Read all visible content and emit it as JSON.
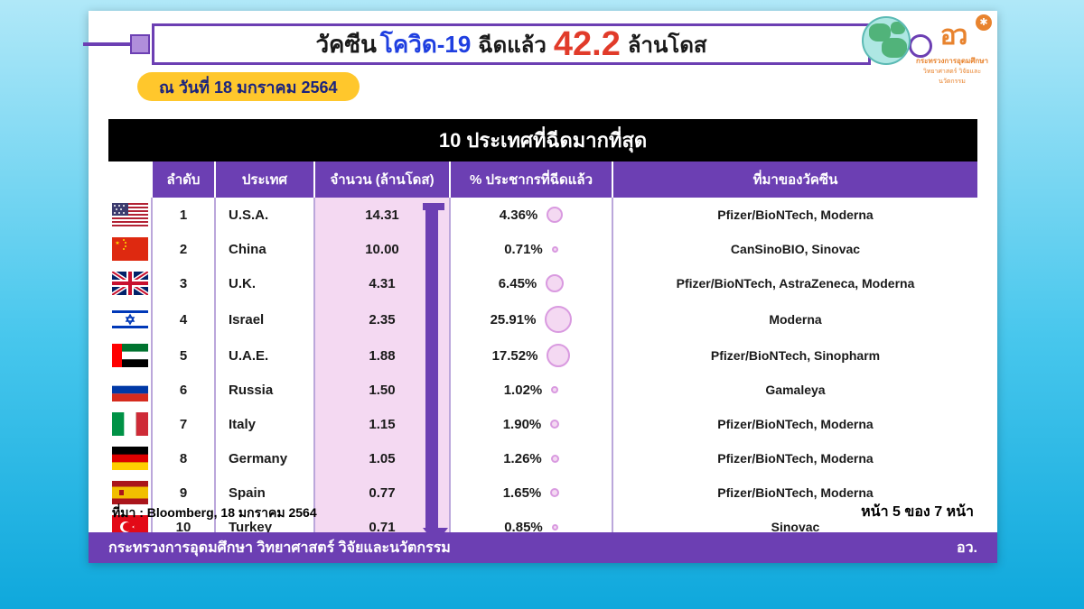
{
  "header": {
    "title_pre": "วัคซีน",
    "title_covid": "โควิด-19",
    "title_mid": "ฉีดแล้ว",
    "title_big": "42.2",
    "title_post": "ล้านโดส",
    "date_label": "ณ วันที่ 18 มกราคม 2564",
    "ministry_line1": "กระทรวงการอุดมศึกษา",
    "ministry_line2": "วิทยาศาสตร์ วิจัยและนวัตกรรม"
  },
  "table": {
    "title": "10 ประเทศที่ฉีดมากที่สุด",
    "columns": {
      "rank": "ลำดับ",
      "country": "ประเทศ",
      "amount": "จำนวน (ล้านโดส)",
      "percent": "% ประชากรที่ฉีดแล้ว",
      "vaccine": "ที่มาของวัคซีน"
    },
    "rows": [
      {
        "flag": "us",
        "rank": "1",
        "country": "U.S.A.",
        "amount": "14.31",
        "percent": "4.36%",
        "bubble": 18,
        "vaccine": "Pfizer/BioNTech, Moderna"
      },
      {
        "flag": "cn",
        "rank": "2",
        "country": "China",
        "amount": "10.00",
        "percent": "0.71%",
        "bubble": 7,
        "vaccine": "CanSinoBIO, Sinovac"
      },
      {
        "flag": "uk",
        "rank": "3",
        "country": "U.K.",
        "amount": "4.31",
        "percent": "6.45%",
        "bubble": 20,
        "vaccine": "Pfizer/BioNTech, AstraZeneca, Moderna"
      },
      {
        "flag": "il",
        "rank": "4",
        "country": "Israel",
        "amount": "2.35",
        "percent": "25.91%",
        "bubble": 30,
        "vaccine": "Moderna"
      },
      {
        "flag": "ae",
        "rank": "5",
        "country": "U.A.E.",
        "amount": "1.88",
        "percent": "17.52%",
        "bubble": 26,
        "vaccine": "Pfizer/BioNTech, Sinopharm"
      },
      {
        "flag": "ru",
        "rank": "6",
        "country": "Russia",
        "amount": "1.50",
        "percent": "1.02%",
        "bubble": 8,
        "vaccine": "Gamaleya"
      },
      {
        "flag": "it",
        "rank": "7",
        "country": "Italy",
        "amount": "1.15",
        "percent": "1.90%",
        "bubble": 10,
        "vaccine": "Pfizer/BioNTech, Moderna"
      },
      {
        "flag": "de",
        "rank": "8",
        "country": "Germany",
        "amount": "1.05",
        "percent": "1.26%",
        "bubble": 9,
        "vaccine": "Pfizer/BioNTech, Moderna"
      },
      {
        "flag": "es",
        "rank": "9",
        "country": "Spain",
        "amount": "0.77",
        "percent": "1.65%",
        "bubble": 10,
        "vaccine": "Pfizer/BioNTech, Moderna"
      },
      {
        "flag": "tr",
        "rank": "10",
        "country": "Turkey",
        "amount": "0.71",
        "percent": "0.85%",
        "bubble": 7,
        "vaccine": "Sinovac"
      }
    ]
  },
  "footer": {
    "source": "ที่มา : Bloomberg, 18 มกราคม 2564",
    "page": "หน้า 5 ของ 7 หน้า",
    "bar_left": "กระทรวงการอุดมศึกษา วิทยาศาสตร์ วิจัยและนวัตกรรม",
    "bar_right": "อว."
  },
  "colors": {
    "purple": "#6c3fb3",
    "amount_bg": "#f4d9f2",
    "red": "#e13b2a",
    "yellow": "#ffc72c",
    "orange": "#e8832e"
  }
}
